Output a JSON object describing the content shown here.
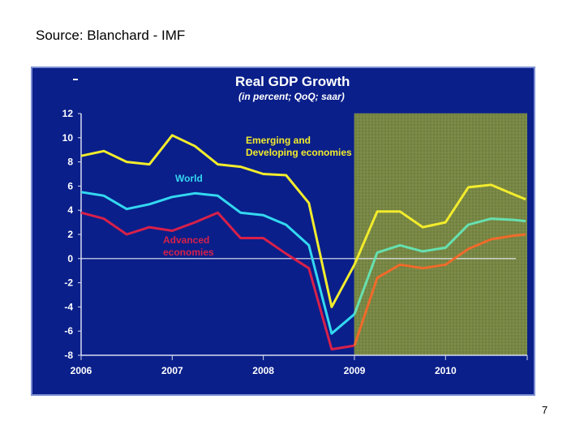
{
  "source": "Source: Blanchard - IMF",
  "page_number": "7",
  "colors": {
    "background": "#0a1f8a",
    "panel_border": "#7c8fd4",
    "shade": "#6f7f3e",
    "grid": "#8f9c58",
    "emerging": "#f2ec2c",
    "world": "#33d8f0",
    "world_forecast": "#66e0b0",
    "advanced": "#d8204a",
    "advanced_forecast": "#f06a2a",
    "axis": "#d8dcf0"
  },
  "chart_data": {
    "type": "line",
    "title": "Real GDP Growth",
    "subtitle": "(in percent; QoQ; saar)",
    "xlabel": "",
    "ylabel": "",
    "ylim": [
      -8,
      12
    ],
    "xlim": [
      2006.0,
      2010.95
    ],
    "y_ticks": [
      "12",
      "10",
      "8",
      "6",
      "4",
      "2",
      "0",
      "-2",
      "-4",
      "-6",
      "-8"
    ],
    "x_ticks": [
      "2006",
      "2007",
      "2008",
      "2009",
      "2010"
    ],
    "forecast_start": 2009.0,
    "grid": false,
    "series": [
      {
        "name": "Emerging and Developing economies",
        "label_lines": [
          "Emerging and",
          "Developing economies"
        ],
        "color_key": "emerging",
        "forecast_color_key": "emerging",
        "x": [
          2006.0,
          2006.25,
          2006.5,
          2006.75,
          2007.0,
          2007.25,
          2007.5,
          2007.75,
          2008.0,
          2008.25,
          2008.5,
          2008.75,
          2009.0,
          2009.25,
          2009.5,
          2009.75,
          2010.0,
          2010.25,
          2010.5,
          2010.75,
          2010.88
        ],
        "y": [
          8.5,
          8.9,
          8.0,
          7.8,
          10.2,
          9.3,
          7.8,
          7.6,
          7.0,
          6.9,
          4.6,
          -4.0,
          -0.5,
          3.9,
          3.9,
          2.6,
          3.0,
          5.9,
          6.1,
          5.3,
          4.9
        ]
      },
      {
        "name": "World",
        "label_lines": [
          "World"
        ],
        "color_key": "world",
        "forecast_color_key": "world_forecast",
        "x": [
          2006.0,
          2006.25,
          2006.5,
          2006.75,
          2007.0,
          2007.25,
          2007.5,
          2007.75,
          2008.0,
          2008.25,
          2008.5,
          2008.75,
          2009.0,
          2009.25,
          2009.5,
          2009.75,
          2010.0,
          2010.25,
          2010.5,
          2010.75,
          2010.88
        ],
        "y": [
          5.5,
          5.2,
          4.1,
          4.5,
          5.1,
          5.4,
          5.2,
          3.8,
          3.6,
          2.8,
          1.1,
          -6.2,
          -4.6,
          0.5,
          1.1,
          0.6,
          0.9,
          2.8,
          3.3,
          3.2,
          3.1
        ]
      },
      {
        "name": "Advanced economies",
        "label_lines": [
          "Advanced",
          "economies"
        ],
        "color_key": "advanced",
        "forecast_color_key": "advanced_forecast",
        "x": [
          2006.0,
          2006.25,
          2006.5,
          2006.75,
          2007.0,
          2007.25,
          2007.5,
          2007.75,
          2008.0,
          2008.25,
          2008.5,
          2008.75,
          2009.0,
          2009.25,
          2009.5,
          2009.75,
          2010.0,
          2010.25,
          2010.5,
          2010.75,
          2010.88
        ],
        "y": [
          3.8,
          3.3,
          2.0,
          2.6,
          2.3,
          3.0,
          3.8,
          1.7,
          1.7,
          0.4,
          -0.8,
          -7.5,
          -7.2,
          -1.6,
          -0.5,
          -0.8,
          -0.5,
          0.8,
          1.6,
          1.9,
          2.0
        ]
      }
    ]
  }
}
